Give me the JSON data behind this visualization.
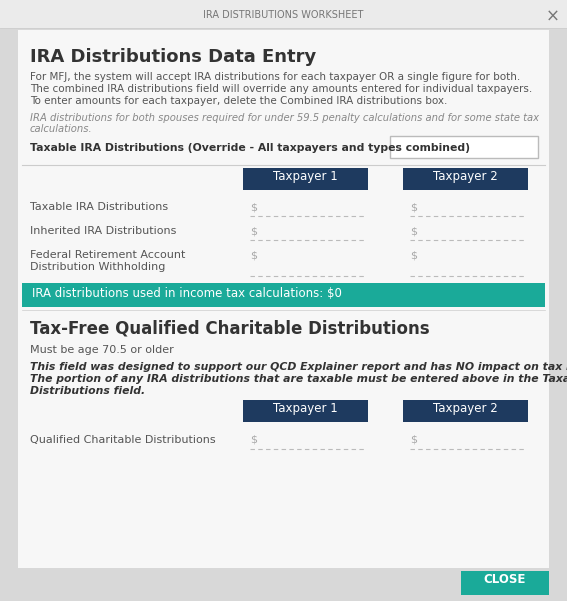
{
  "title": "IRA DISTRIBUTIONS WORKSHEET",
  "close_x": "×",
  "outer_bg": "#d8d8d8",
  "titlebar_bg": "#ebebeb",
  "dialog_bg": "#f7f7f7",
  "teal_color": "#1aaa99",
  "dark_blue": "#1e3a5f",
  "section1_title": "IRA Distributions Data Entry",
  "section1_para1": "For MFJ, the system will accept IRA distributions for each taxpayer OR a single figure for both.",
  "section1_para2": "The combined IRA distributions field will override any amounts entered for individual taxpayers.",
  "section1_para3": "To enter amounts for each taxpayer, delete the Combined IRA distributions box.",
  "italic_note1": "IRA distributions for both spouses required for under 59.5 penalty calculations and for some state tax",
  "italic_note2": "calculations.",
  "override_label": "Taxable IRA Distributions (Override - All taxpayers and types combined)",
  "col_header1": "Taxpayer 1",
  "col_header2": "Taxpayer 2",
  "row1_label": "Taxable IRA Distributions",
  "row2_label": "Inherited IRA Distributions",
  "row3_label1": "Federal Retirement Account",
  "row3_label2": "Distribution Withholding",
  "teal_bar_text": "IRA distributions used in income tax calculations: $0",
  "section2_title": "Tax-Free Qualified Charitable Distributions",
  "section2_sub": "Must be age 70.5 or older",
  "section2_italic1": "This field was designed to support our QCD Explainer report and has NO impact on tax liability.",
  "section2_italic2": "The portion of any IRA distributions that are taxable must be entered above in the Taxable IRA",
  "section2_italic3": "Distributions field.",
  "qcd_row_label": "Qualified Charitable Distributions",
  "close_btn_text": "CLOSE",
  "close_btn_color": "#1aaa99",
  "separator_color": "#cccccc",
  "dollar_color": "#aaaaaa",
  "dash_color": "#bbbbbb",
  "text_dark": "#333333",
  "text_medium": "#555555",
  "text_gray": "#888888",
  "white": "#ffffff"
}
